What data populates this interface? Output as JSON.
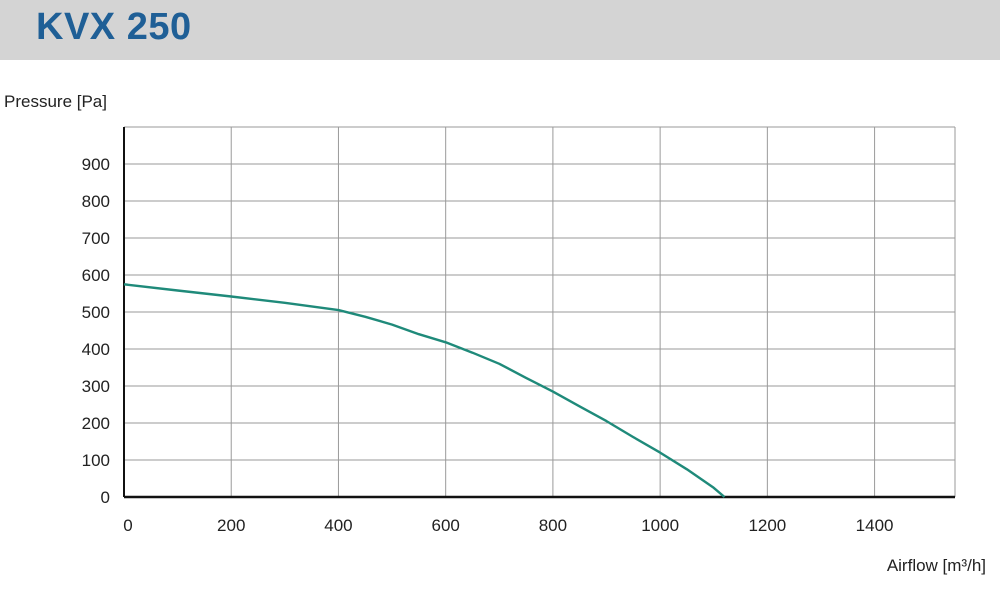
{
  "header": {
    "title": "KVX 250"
  },
  "colors": {
    "title": "#1f5f96",
    "curve": "#1f8a7a",
    "grid": "#9a9a9a",
    "axis": "#111111",
    "band": "#d4d4d4"
  },
  "chart_data": {
    "type": "line",
    "title": "KVX 250",
    "ylabel": "Pressure [Pa]",
    "xlabel": "Airflow [m³/h]",
    "xlim": [
      0,
      1550
    ],
    "ylim": [
      0,
      1000
    ],
    "x_ticks": [
      0,
      200,
      400,
      600,
      800,
      1000,
      1200,
      1400
    ],
    "y_ticks": [
      0,
      100,
      200,
      300,
      400,
      500,
      600,
      700,
      800,
      900
    ],
    "grid": true,
    "series": [
      {
        "x": [
          0,
          100,
          200,
          300,
          400,
          450,
          500,
          550,
          600,
          650,
          700,
          750,
          800,
          850,
          900,
          950,
          1000,
          1050,
          1100,
          1120
        ],
        "y": [
          575,
          558,
          542,
          525,
          505,
          487,
          466,
          440,
          418,
          390,
          360,
          322,
          285,
          245,
          205,
          162,
          120,
          75,
          25,
          0
        ]
      }
    ]
  }
}
